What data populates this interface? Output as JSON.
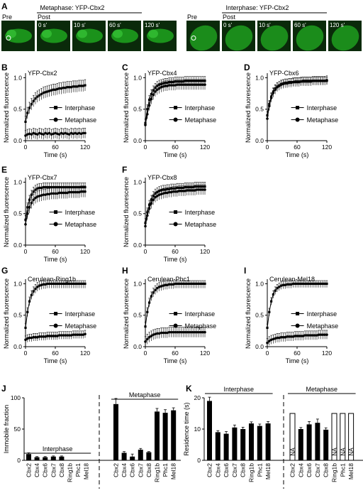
{
  "panel_letters": {
    "A": "A",
    "B": "B",
    "C": "C",
    "D": "D",
    "E": "E",
    "F": "F",
    "G": "G",
    "H": "H",
    "I": "I",
    "J": "J",
    "K": "K"
  },
  "panel_A": {
    "metaphase_title": "Metaphase: YFP-Cbx2",
    "interphase_title": "Interphase: YFP-Cbx2",
    "pre_label": "Pre",
    "post_label": "Post",
    "frame_times": [
      "0 s'",
      "10 s'",
      "60 s'",
      "120 s'"
    ],
    "image_color": "#1fa51f",
    "image_bg": "#0a2a0a"
  },
  "common": {
    "xlabel": "Time (s)",
    "ylabel": "Normalized fluorescence",
    "xticks": [
      0,
      60,
      120
    ],
    "yticks": [
      0,
      0.5,
      1.0
    ],
    "ytick_labels": [
      "0.0",
      "0.5",
      "1.0"
    ],
    "legend": [
      "Interphase",
      "Metaphase"
    ]
  },
  "chart_data": [
    {
      "panel": "B",
      "type": "line",
      "title": "YFP-Cbx2",
      "xlim": [
        0,
        120
      ],
      "ylim": [
        0,
        1.05
      ],
      "x": [
        0,
        4,
        8,
        12,
        16,
        20,
        24,
        28,
        32,
        36,
        40,
        44,
        48,
        52,
        56,
        60,
        64,
        68,
        72,
        76,
        80,
        84,
        88,
        92,
        96,
        100,
        104,
        108,
        112,
        116,
        120
      ],
      "series": [
        {
          "name": "Interphase",
          "marker": "square",
          "values": [
            0.3,
            0.44,
            0.52,
            0.58,
            0.63,
            0.67,
            0.7,
            0.72,
            0.74,
            0.76,
            0.77,
            0.78,
            0.79,
            0.8,
            0.81,
            0.81,
            0.82,
            0.83,
            0.83,
            0.84,
            0.84,
            0.85,
            0.85,
            0.85,
            0.86,
            0.86,
            0.86,
            0.87,
            0.87,
            0.87,
            0.88
          ],
          "error": 0.09
        },
        {
          "name": "Metaphase",
          "marker": "circle",
          "values": [
            0.08,
            0.1,
            0.11,
            0.1,
            0.12,
            0.11,
            0.1,
            0.12,
            0.11,
            0.1,
            0.12,
            0.11,
            0.12,
            0.1,
            0.11,
            0.12,
            0.11,
            0.1,
            0.12,
            0.11,
            0.12,
            0.11,
            0.1,
            0.12,
            0.11,
            0.12,
            0.11,
            0.12,
            0.11,
            0.12,
            0.12
          ],
          "error": 0.08
        }
      ]
    },
    {
      "panel": "C",
      "type": "line",
      "title": "YFP-Cbx4",
      "xlim": [
        0,
        120
      ],
      "ylim": [
        0,
        1.05
      ],
      "x": [
        0,
        4,
        8,
        12,
        16,
        20,
        24,
        28,
        32,
        36,
        40,
        44,
        48,
        52,
        56,
        60,
        64,
        68,
        72,
        76,
        80,
        84,
        88,
        92,
        96,
        100,
        104,
        108,
        112,
        116,
        120
      ],
      "series": [
        {
          "name": "Interphase",
          "marker": "square",
          "values": [
            0.28,
            0.5,
            0.65,
            0.74,
            0.8,
            0.84,
            0.87,
            0.89,
            0.9,
            0.91,
            0.92,
            0.92,
            0.93,
            0.93,
            0.93,
            0.94,
            0.94,
            0.94,
            0.94,
            0.94,
            0.95,
            0.95,
            0.95,
            0.95,
            0.95,
            0.95,
            0.95,
            0.95,
            0.95,
            0.95,
            0.95
          ],
          "error": 0.07
        },
        {
          "name": "Metaphase",
          "marker": "circle",
          "values": [
            0.25,
            0.42,
            0.56,
            0.66,
            0.73,
            0.78,
            0.81,
            0.83,
            0.85,
            0.86,
            0.87,
            0.87,
            0.88,
            0.88,
            0.88,
            0.88,
            0.89,
            0.89,
            0.89,
            0.89,
            0.89,
            0.89,
            0.89,
            0.89,
            0.89,
            0.89,
            0.89,
            0.89,
            0.89,
            0.89,
            0.89
          ],
          "error": 0.08
        }
      ]
    },
    {
      "panel": "D",
      "type": "line",
      "title": "YFP-Cbx6",
      "xlim": [
        0,
        120
      ],
      "ylim": [
        0,
        1.05
      ],
      "x": [
        0,
        4,
        8,
        12,
        16,
        20,
        24,
        28,
        32,
        36,
        40,
        44,
        48,
        52,
        56,
        60,
        64,
        68,
        72,
        76,
        80,
        84,
        88,
        92,
        96,
        100,
        104,
        108,
        112,
        116,
        120
      ],
      "series": [
        {
          "name": "Interphase",
          "marker": "square",
          "values": [
            0.4,
            0.58,
            0.7,
            0.78,
            0.83,
            0.86,
            0.88,
            0.9,
            0.91,
            0.92,
            0.92,
            0.93,
            0.93,
            0.93,
            0.94,
            0.94,
            0.94,
            0.94,
            0.95,
            0.95,
            0.95,
            0.95,
            0.95,
            0.95,
            0.95,
            0.95,
            0.95,
            0.95,
            0.95,
            0.95,
            0.95
          ],
          "error": 0.06
        },
        {
          "name": "Metaphase",
          "marker": "circle",
          "values": [
            0.35,
            0.55,
            0.68,
            0.76,
            0.81,
            0.85,
            0.87,
            0.89,
            0.9,
            0.91,
            0.91,
            0.92,
            0.92,
            0.93,
            0.93,
            0.93,
            0.93,
            0.94,
            0.94,
            0.94,
            0.94,
            0.94,
            0.94,
            0.95,
            0.95,
            0.95,
            0.95,
            0.95,
            0.95,
            0.95,
            0.96
          ],
          "error": 0.07
        }
      ]
    },
    {
      "panel": "E",
      "type": "line",
      "title": "YFP-Cbx7",
      "xlim": [
        0,
        120
      ],
      "ylim": [
        0,
        1.05
      ],
      "x": [
        0,
        4,
        8,
        12,
        16,
        20,
        24,
        28,
        32,
        36,
        40,
        44,
        48,
        52,
        56,
        60,
        64,
        68,
        72,
        76,
        80,
        84,
        88,
        92,
        96,
        100,
        104,
        108,
        112,
        116,
        120
      ],
      "series": [
        {
          "name": "Interphase",
          "marker": "square",
          "values": [
            0.4,
            0.6,
            0.72,
            0.8,
            0.85,
            0.88,
            0.9,
            0.91,
            0.91,
            0.92,
            0.92,
            0.92,
            0.92,
            0.92,
            0.92,
            0.92,
            0.92,
            0.92,
            0.92,
            0.92,
            0.92,
            0.92,
            0.92,
            0.92,
            0.92,
            0.92,
            0.92,
            0.92,
            0.92,
            0.92,
            0.92
          ],
          "error": 0.07
        },
        {
          "name": "Metaphase",
          "marker": "circle",
          "values": [
            0.33,
            0.5,
            0.6,
            0.67,
            0.72,
            0.75,
            0.77,
            0.78,
            0.79,
            0.8,
            0.8,
            0.81,
            0.81,
            0.82,
            0.82,
            0.82,
            0.82,
            0.83,
            0.83,
            0.83,
            0.83,
            0.83,
            0.84,
            0.84,
            0.84,
            0.84,
            0.84,
            0.84,
            0.85,
            0.85,
            0.85
          ],
          "error": 0.09
        }
      ]
    },
    {
      "panel": "F",
      "type": "line",
      "title": "YFP-Cbx8",
      "xlim": [
        0,
        120
      ],
      "ylim": [
        0,
        1.05
      ],
      "x": [
        0,
        4,
        8,
        12,
        16,
        20,
        24,
        28,
        32,
        36,
        40,
        44,
        48,
        52,
        56,
        60,
        64,
        68,
        72,
        76,
        80,
        84,
        88,
        92,
        96,
        100,
        104,
        108,
        112,
        116,
        120
      ],
      "series": [
        {
          "name": "Interphase",
          "marker": "square",
          "values": [
            0.35,
            0.52,
            0.64,
            0.72,
            0.78,
            0.82,
            0.84,
            0.86,
            0.87,
            0.88,
            0.88,
            0.89,
            0.89,
            0.9,
            0.9,
            0.9,
            0.91,
            0.91,
            0.91,
            0.91,
            0.92,
            0.92,
            0.92,
            0.92,
            0.92,
            0.93,
            0.93,
            0.93,
            0.93,
            0.93,
            0.93
          ],
          "error": 0.07
        },
        {
          "name": "Metaphase",
          "marker": "circle",
          "values": [
            0.3,
            0.47,
            0.58,
            0.66,
            0.72,
            0.76,
            0.78,
            0.8,
            0.81,
            0.82,
            0.83,
            0.83,
            0.84,
            0.84,
            0.85,
            0.85,
            0.85,
            0.86,
            0.86,
            0.86,
            0.86,
            0.87,
            0.87,
            0.87,
            0.87,
            0.87,
            0.88,
            0.88,
            0.88,
            0.88,
            0.88
          ],
          "error": 0.08
        }
      ]
    },
    {
      "panel": "G",
      "type": "line",
      "title": "Cerulean-Ring1b",
      "xlim": [
        0,
        120
      ],
      "ylim": [
        0,
        1.05
      ],
      "x": [
        0,
        4,
        8,
        12,
        16,
        20,
        24,
        28,
        32,
        36,
        40,
        44,
        48,
        52,
        56,
        60,
        64,
        68,
        72,
        76,
        80,
        84,
        88,
        92,
        96,
        100,
        104,
        108,
        112,
        116,
        120
      ],
      "series": [
        {
          "name": "Interphase",
          "marker": "square",
          "values": [
            0.3,
            0.55,
            0.72,
            0.82,
            0.88,
            0.92,
            0.95,
            0.97,
            0.98,
            0.99,
            0.99,
            1.0,
            1.0,
            1.0,
            1.0,
            1.0,
            1.0,
            1.0,
            1.0,
            1.0,
            1.0,
            1.0,
            1.0,
            1.0,
            1.0,
            1.0,
            1.0,
            1.0,
            1.0,
            1.0,
            1.0
          ],
          "error": 0.07
        },
        {
          "name": "Metaphase",
          "marker": "circle",
          "values": [
            0.11,
            0.13,
            0.14,
            0.14,
            0.15,
            0.15,
            0.15,
            0.16,
            0.16,
            0.16,
            0.16,
            0.17,
            0.17,
            0.17,
            0.17,
            0.17,
            0.17,
            0.18,
            0.18,
            0.18,
            0.18,
            0.18,
            0.18,
            0.18,
            0.19,
            0.19,
            0.19,
            0.19,
            0.19,
            0.19,
            0.2
          ],
          "error": 0.06
        }
      ]
    },
    {
      "panel": "H",
      "type": "line",
      "title": "Cerulean-Phc1",
      "xlim": [
        0,
        120
      ],
      "ylim": [
        0,
        1.05
      ],
      "x": [
        0,
        4,
        8,
        12,
        16,
        20,
        24,
        28,
        32,
        36,
        40,
        44,
        48,
        52,
        56,
        60,
        64,
        68,
        72,
        76,
        80,
        84,
        88,
        92,
        96,
        100,
        104,
        108,
        112,
        116,
        120
      ],
      "series": [
        {
          "name": "Interphase",
          "marker": "square",
          "values": [
            0.32,
            0.55,
            0.7,
            0.8,
            0.86,
            0.9,
            0.93,
            0.95,
            0.96,
            0.97,
            0.98,
            0.98,
            0.99,
            0.99,
            0.99,
            1.0,
            1.0,
            1.0,
            1.0,
            1.0,
            1.0,
            1.0,
            1.0,
            1.0,
            1.0,
            1.0,
            1.0,
            1.0,
            1.0,
            1.0,
            1.0
          ],
          "error": 0.07
        },
        {
          "name": "Metaphase",
          "marker": "circle",
          "values": [
            0.08,
            0.12,
            0.15,
            0.17,
            0.19,
            0.2,
            0.21,
            0.21,
            0.22,
            0.22,
            0.22,
            0.22,
            0.23,
            0.23,
            0.23,
            0.23,
            0.23,
            0.23,
            0.23,
            0.23,
            0.23,
            0.23,
            0.23,
            0.23,
            0.23,
            0.23,
            0.23,
            0.23,
            0.23,
            0.23,
            0.23
          ],
          "error": 0.08
        }
      ]
    },
    {
      "panel": "I",
      "type": "line",
      "title": "Cerulean-Mel18",
      "xlim": [
        0,
        120
      ],
      "ylim": [
        0,
        1.05
      ],
      "x": [
        0,
        4,
        8,
        12,
        16,
        20,
        24,
        28,
        32,
        36,
        40,
        44,
        48,
        52,
        56,
        60,
        64,
        68,
        72,
        76,
        80,
        84,
        88,
        92,
        96,
        100,
        104,
        108,
        112,
        116,
        120
      ],
      "series": [
        {
          "name": "Interphase",
          "marker": "square",
          "values": [
            0.3,
            0.55,
            0.72,
            0.83,
            0.89,
            0.93,
            0.95,
            0.97,
            0.98,
            0.98,
            0.99,
            0.99,
            0.99,
            1.0,
            1.0,
            1.0,
            1.0,
            1.0,
            1.0,
            1.0,
            1.0,
            1.0,
            1.0,
            1.0,
            1.0,
            1.0,
            1.0,
            1.0,
            1.0,
            1.0,
            1.0
          ],
          "error": 0.06
        },
        {
          "name": "Metaphase",
          "marker": "circle",
          "values": [
            0.06,
            0.09,
            0.11,
            0.12,
            0.13,
            0.14,
            0.14,
            0.15,
            0.15,
            0.15,
            0.16,
            0.16,
            0.16,
            0.16,
            0.17,
            0.17,
            0.17,
            0.17,
            0.17,
            0.18,
            0.18,
            0.18,
            0.18,
            0.18,
            0.18,
            0.18,
            0.19,
            0.19,
            0.19,
            0.19,
            0.19
          ],
          "error": 0.07
        }
      ]
    },
    {
      "panel": "J",
      "type": "bar",
      "ylabel": "Immobile fraction",
      "ylim": [
        0,
        100
      ],
      "yticks": [
        0,
        50,
        100
      ],
      "groups": [
        {
          "name": "Interphase",
          "categories": [
            "Cbx2",
            "Cbx4",
            "Cbx6",
            "Cbx7",
            "Cbx8",
            "Ring1b",
            "Phc1",
            "Mel18"
          ],
          "values": [
            10,
            5,
            5,
            6,
            6,
            0,
            0,
            0
          ],
          "errors": [
            2,
            1,
            1,
            1,
            1,
            0,
            0,
            0
          ]
        },
        {
          "name": "Metaphase",
          "categories": [
            "Cbx2",
            "Cbx4",
            "Cbx6",
            "Cbx7",
            "Cbx8",
            "Ring1b",
            "Phc1",
            "Mel18"
          ],
          "values": [
            90,
            12,
            6,
            17,
            13,
            78,
            76,
            80
          ],
          "errors": [
            9,
            2,
            4,
            2,
            1,
            5,
            5,
            4
          ]
        }
      ]
    },
    {
      "panel": "K",
      "type": "bar",
      "ylabel": "Residence time (s)",
      "ylim": [
        0,
        20
      ],
      "yticks": [
        0,
        10,
        20
      ],
      "na_label": "NA",
      "groups": [
        {
          "name": "Interphase",
          "categories": [
            "Cbx2",
            "Cbx4",
            "Cbx6",
            "Cbx7",
            "Cbx8",
            "Ring1b",
            "Phc1",
            "Mel18"
          ],
          "values": [
            19,
            9,
            8.5,
            10.5,
            10,
            11.8,
            11,
            11.8
          ],
          "errors": [
            1.2,
            0.5,
            0.7,
            0.8,
            0.6,
            0.5,
            0.6,
            0.6
          ]
        },
        {
          "name": "Metaphase",
          "categories": [
            "Cbx2",
            "Cbx4",
            "Cbx6",
            "Cbx7",
            "Cbx8",
            "Ring1b",
            "Phc1",
            "Mel18"
          ],
          "values": [
            null,
            10,
            11.5,
            12,
            9.8,
            null,
            null,
            null
          ],
          "errors": [
            0,
            0.5,
            0.9,
            1.2,
            0.6,
            0,
            0,
            0
          ]
        }
      ]
    }
  ]
}
